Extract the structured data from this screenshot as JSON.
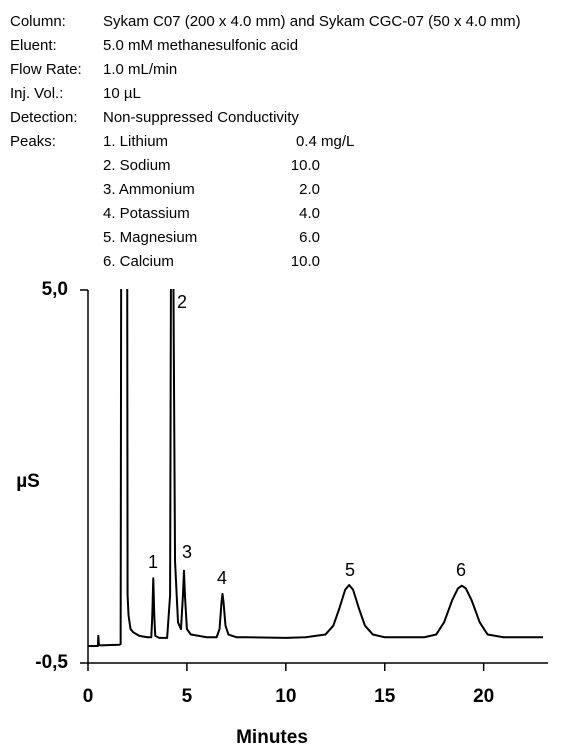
{
  "conditions": [
    {
      "label": "Column:",
      "value": "Sykam C07 (200 x 4.0 mm) and Sykam CGC-07 (50 x 4.0 mm)"
    },
    {
      "label": "Eluent:",
      "value": "5.0 mM methanesulfonic acid"
    },
    {
      "label": "Flow Rate:",
      "value": "1.0 mL/min"
    },
    {
      "label": "Inj. Vol.:",
      "value": "10 µL"
    },
    {
      "label": "Detection:",
      "value": "Non-suppressed Conductivity"
    }
  ],
  "peaks_label": "Peaks:",
  "peaks": [
    {
      "name": "1. Lithium",
      "concentration": "0.4 mg/L"
    },
    {
      "name": "2. Sodium",
      "concentration": "10.0"
    },
    {
      "name": "3. Ammonium",
      "concentration": "2.0"
    },
    {
      "name": "4. Potassium",
      "concentration": "4.0"
    },
    {
      "name": "5. Magnesium",
      "concentration": "6.0"
    },
    {
      "name": "6. Calcium",
      "concentration": "10.0"
    }
  ],
  "chart_data": {
    "type": "line",
    "xlabel": "Minutes",
    "ylabel": "µS",
    "xlim": [
      0,
      23
    ],
    "xticks": [
      0,
      5,
      10,
      15,
      20
    ],
    "ylim": [
      -0.5,
      5
    ],
    "yticks": [
      {
        "value": -0.5,
        "label": "-0,5"
      },
      {
        "value": 5,
        "label": "5,0"
      }
    ],
    "annotations": [
      "1",
      "2",
      "3",
      "4",
      "5",
      "6"
    ],
    "series": [
      {
        "color": "#000000",
        "x": [
          0,
          0.5,
          0.52,
          0.55,
          0.6,
          1.6,
          1.65,
          1.68,
          1.98,
          2.0,
          2.05,
          2.15,
          2.3,
          2.6,
          3.0,
          3.2,
          3.25,
          3.3,
          3.35,
          3.4,
          3.6,
          4.0,
          4.15,
          4.2,
          4.3,
          4.4,
          4.55,
          4.7,
          4.8,
          4.85,
          4.9,
          5.0,
          5.2,
          5.6,
          6.0,
          6.5,
          6.65,
          6.75,
          6.8,
          6.85,
          6.95,
          7.1,
          7.5,
          8,
          10,
          11,
          12,
          12.4,
          12.7,
          13.0,
          13.2,
          13.4,
          13.7,
          14.0,
          14.4,
          15,
          17,
          17.6,
          18.0,
          18.4,
          18.7,
          18.9,
          19.1,
          19.4,
          19.8,
          20.2,
          21,
          23
        ],
        "values": [
          -0.25,
          -0.25,
          -0.1,
          -0.22,
          -0.24,
          -0.23,
          -0.22,
          6,
          6,
          0.5,
          0.2,
          0.0,
          -0.05,
          -0.1,
          -0.12,
          -0.12,
          0.2,
          0.75,
          0.2,
          -0.1,
          -0.13,
          -0.13,
          0.5,
          6,
          6,
          1.0,
          0.1,
          0,
          0.5,
          0.86,
          0.5,
          0,
          -0.08,
          -0.1,
          -0.12,
          -0.12,
          0,
          0.4,
          0.52,
          0.4,
          0.05,
          -0.08,
          -0.12,
          -0.12,
          -0.13,
          -0.12,
          -0.08,
          0.05,
          0.3,
          0.58,
          0.65,
          0.58,
          0.3,
          0.05,
          -0.08,
          -0.12,
          -0.12,
          -0.08,
          0.1,
          0.42,
          0.6,
          0.64,
          0.6,
          0.42,
          0.1,
          -0.08,
          -0.12,
          -0.12
        ]
      }
    ]
  }
}
